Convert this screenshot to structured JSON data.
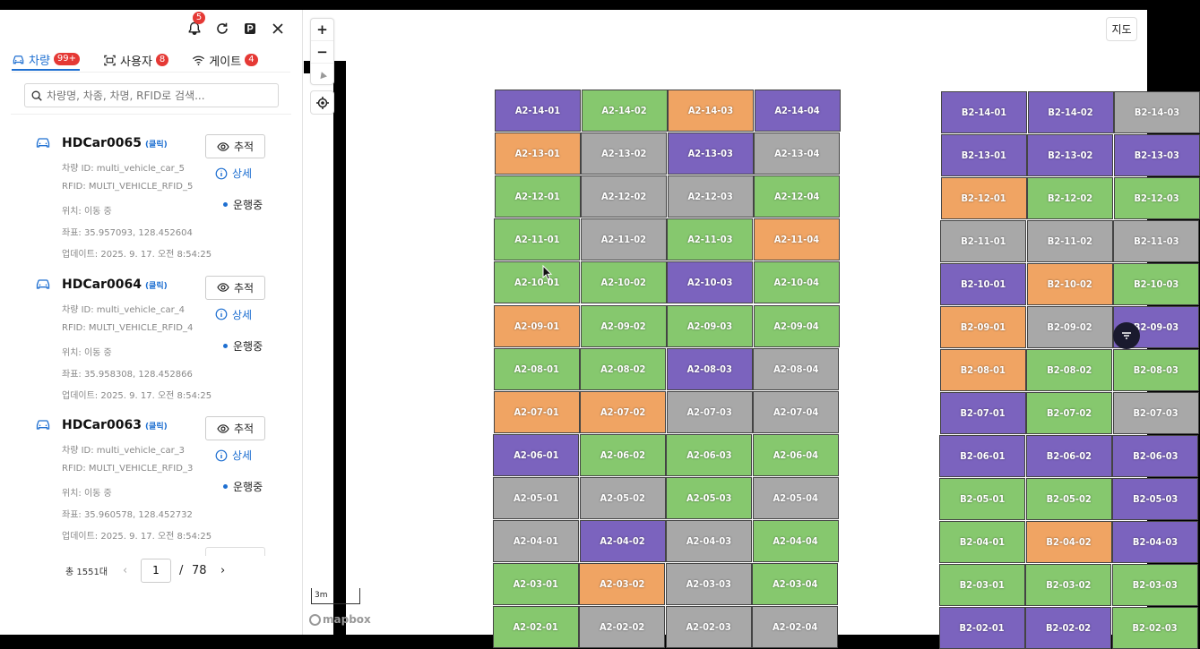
{
  "header": {
    "notification_count": "5"
  },
  "tabs": [
    {
      "label": "차량",
      "count": "99+"
    },
    {
      "label": "사용자",
      "count": "8"
    },
    {
      "label": "게이트",
      "count": "4"
    }
  ],
  "search": {
    "placeholder": "차량명, 차종, 차명, RFID로 검색..."
  },
  "vehicles": [
    {
      "name": "HDCar0065",
      "click_label": "(클릭)",
      "vehicle_id": "차량 ID: multi_vehicle_car_5",
      "rfid": "RFID: MULTI_VEHICLE_RFID_5",
      "location": "위치: 이동 중",
      "coords": "좌표: 35.957093, 128.452604",
      "updated": "업데이트: 2025. 9. 17. 오전 8:54:25",
      "track_label": "추적",
      "detail_label": "상세",
      "status": "운행중"
    },
    {
      "name": "HDCar0064",
      "click_label": "(클릭)",
      "vehicle_id": "차량 ID: multi_vehicle_car_4",
      "rfid": "RFID: MULTI_VEHICLE_RFID_4",
      "location": "위치: 이동 중",
      "coords": "좌표: 35.958308, 128.452866",
      "updated": "업데이트: 2025. 9. 17. 오전 8:54:25",
      "track_label": "추적",
      "detail_label": "상세",
      "status": "운행중"
    },
    {
      "name": "HDCar0063",
      "click_label": "(클릭)",
      "vehicle_id": "차량 ID: multi_vehicle_car_3",
      "rfid": "RFID: MULTI_VEHICLE_RFID_3",
      "location": "위치: 이동 중",
      "coords": "좌표: 35.960578, 128.452732",
      "updated": "업데이트: 2025. 9. 17. 오전 8:54:25",
      "track_label": "추적",
      "detail_label": "상세",
      "status": "운행중"
    }
  ],
  "pagination": {
    "total": "총 1551대",
    "current": "1",
    "separator": "/",
    "total_pages": "78"
  },
  "map": {
    "toggle_label": "지도",
    "scale_label": "3m",
    "attribution": "mapbox",
    "colors": {
      "P": "#7b63be",
      "G": "#86c86e",
      "O": "#f0a463",
      "Y": "#a8a8a8"
    },
    "zone_a": {
      "rows": [
        "14",
        "13",
        "12",
        "11",
        "10",
        "09",
        "08",
        "07",
        "06",
        "05",
        "04",
        "03",
        "02"
      ],
      "cols": [
        "01",
        "02",
        "03",
        "04"
      ],
      "prefix": "A2",
      "colors": [
        "PGOP",
        "OYPY",
        "GYYG",
        "GYGO",
        "GGPG",
        "OGGG",
        "GGPY",
        "OOYY",
        "PGGG",
        "YYGY",
        "YPYG",
        "GOYG",
        "GYYY"
      ]
    },
    "zone_b": {
      "rows": [
        "14",
        "13",
        "12",
        "11",
        "10",
        "09",
        "08",
        "07",
        "06",
        "05",
        "04",
        "03",
        "02"
      ],
      "cols": [
        "01",
        "02",
        "03"
      ],
      "prefix": "B2",
      "colors": [
        "PPY",
        "PPP",
        "OGG",
        "YYY",
        "POG",
        "OYP",
        "OGG",
        "PGY",
        "PPP",
        "GGP",
        "GOP",
        "GGG",
        "PPG"
      ]
    }
  }
}
